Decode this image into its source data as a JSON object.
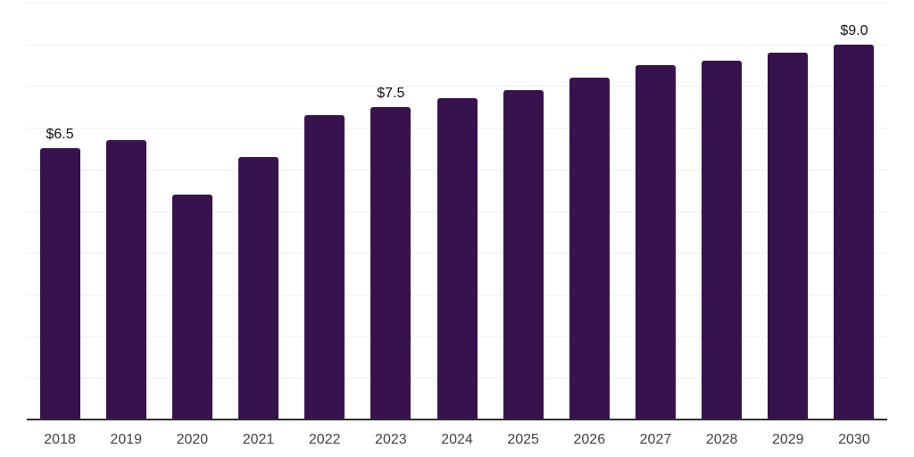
{
  "chart_data": {
    "type": "bar",
    "title": "",
    "xlabel": "",
    "ylabel": "",
    "categories": [
      "2018",
      "2019",
      "2020",
      "2021",
      "2022",
      "2023",
      "2024",
      "2025",
      "2026",
      "2027",
      "2028",
      "2029",
      "2030"
    ],
    "values": [
      6.5,
      6.7,
      5.4,
      6.3,
      7.3,
      7.5,
      7.7,
      7.9,
      8.2,
      8.5,
      8.6,
      8.8,
      9.0
    ],
    "data_labels": [
      "$6.5",
      "",
      "",
      "",
      "",
      "$7.5",
      "",
      "",
      "",
      "",
      "",
      "",
      "$9.0"
    ],
    "value_prefix": "$",
    "ylim": [
      0,
      10
    ],
    "grid": "horizontal gridlines every 1 unit, y-axis tick labels hidden",
    "legend": "none"
  },
  "colors": {
    "bar": "#37124d",
    "gridline": "#efefef",
    "axis_line": "#2e2e2e",
    "x_label": "#434343",
    "value_label": "#111111",
    "background": "#ffffff"
  }
}
